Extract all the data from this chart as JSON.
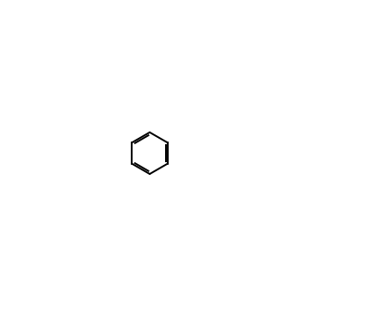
{
  "figsize": [
    4.08,
    3.64
  ],
  "dpi": 100,
  "bg_color": "#ffffff",
  "line_color": "#000000",
  "line_width": 1.4,
  "font_size": 7.5,
  "bold_font_size": 7.5
}
